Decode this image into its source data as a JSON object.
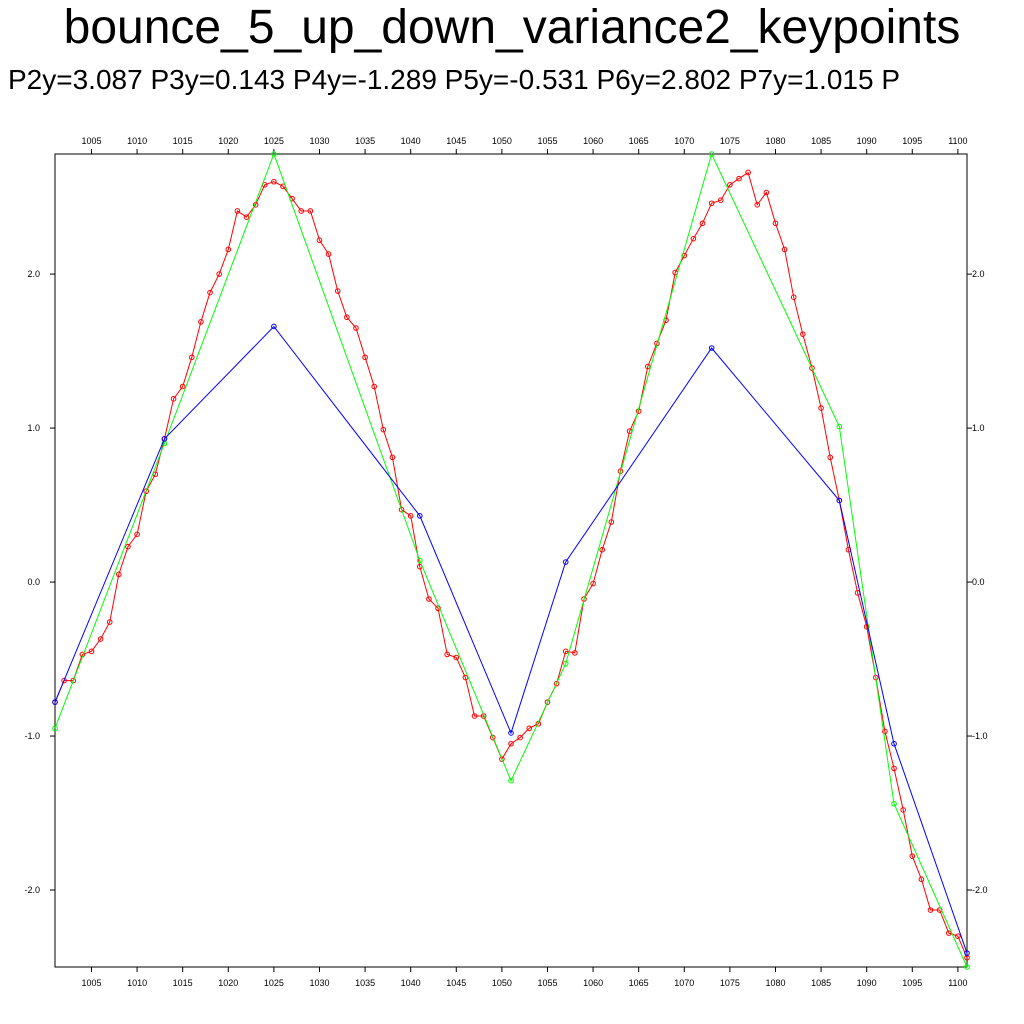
{
  "chart_data": {
    "type": "line",
    "title": "bounce_5_up_down_variance2_keypoints",
    "subtitle": "P2y=3.087 P3y=0.143 P4y=-1.289 P5y=-0.531 P6y=2.802 P7y=1.015 P",
    "xlim": [
      1001,
      1101
    ],
    "ylim": [
      -2.5,
      2.78
    ],
    "x_ticks": [
      1005,
      1010,
      1015,
      1020,
      1025,
      1030,
      1035,
      1040,
      1045,
      1050,
      1055,
      1060,
      1065,
      1070,
      1075,
      1080,
      1085,
      1090,
      1095,
      1100
    ],
    "x_tick_labels": [
      "1005",
      "1010",
      "1015",
      "1020",
      "1025",
      "1030",
      "1035",
      "1040",
      "1045",
      "1050",
      "1055",
      "1060",
      "1065",
      "1070",
      "1075",
      "1080",
      "1085",
      "1090",
      "1095",
      "1100"
    ],
    "y_ticks": [
      2.0,
      1.0,
      0.0,
      -1.0,
      -2.0
    ],
    "y_tick_labels": [
      "2.0",
      "1.0",
      "0.0",
      "-1.0",
      "-2.0"
    ],
    "grid": false,
    "series": [
      {
        "color": "#ff0000",
        "x": [
          1001,
          1002,
          1003,
          1004,
          1005,
          1006,
          1007,
          1008,
          1009,
          1010,
          1011,
          1012,
          1013,
          1014,
          1015,
          1016,
          1017,
          1018,
          1019,
          1020,
          1021,
          1022,
          1023,
          1024,
          1025,
          1026,
          1027,
          1028,
          1029,
          1030,
          1031,
          1032,
          1033,
          1034,
          1035,
          1036,
          1037,
          1038,
          1039,
          1040,
          1041,
          1042,
          1043,
          1044,
          1045,
          1046,
          1047,
          1048,
          1049,
          1050,
          1051,
          1052,
          1053,
          1054,
          1055,
          1056,
          1057,
          1058,
          1059,
          1060,
          1061,
          1062,
          1063,
          1064,
          1065,
          1066,
          1067,
          1068,
          1069,
          1070,
          1071,
          1072,
          1073,
          1074,
          1075,
          1076,
          1077,
          1078,
          1079,
          1080,
          1081,
          1082,
          1083,
          1084,
          1085,
          1086,
          1087,
          1088,
          1089,
          1090,
          1091,
          1092,
          1093,
          1094,
          1095,
          1096,
          1097,
          1098,
          1099,
          1100,
          1101
        ],
        "y": [
          -0.78,
          -0.64,
          -0.64,
          -0.47,
          -0.45,
          -0.37,
          -0.26,
          0.05,
          0.23,
          0.31,
          0.59,
          0.7,
          0.93,
          1.19,
          1.27,
          1.46,
          1.69,
          1.88,
          2.0,
          2.16,
          2.41,
          2.37,
          2.45,
          2.58,
          2.6,
          2.57,
          2.49,
          2.41,
          2.41,
          2.22,
          2.13,
          1.89,
          1.72,
          1.65,
          1.46,
          1.27,
          0.99,
          0.81,
          0.47,
          0.43,
          0.1,
          -0.11,
          -0.17,
          -0.47,
          -0.49,
          -0.62,
          -0.87,
          -0.87,
          -1.01,
          -1.15,
          -1.05,
          -1.01,
          -0.95,
          -0.92,
          -0.78,
          -0.66,
          -0.45,
          -0.46,
          -0.11,
          -0.01,
          0.21,
          0.39,
          0.72,
          0.98,
          1.11,
          1.4,
          1.55,
          1.7,
          2.01,
          2.12,
          2.23,
          2.33,
          2.46,
          2.48,
          2.58,
          2.62,
          2.66,
          2.45,
          2.53,
          2.33,
          2.16,
          1.85,
          1.61,
          1.39,
          1.13,
          0.81,
          0.53,
          0.21,
          -0.07,
          -0.29,
          -0.62,
          -0.97,
          -1.21,
          -1.48,
          -1.78,
          -1.93,
          -2.13,
          -2.13,
          -2.28,
          -2.3,
          -2.44
        ]
      },
      {
        "color": "#00ff00",
        "x": [
          1001,
          1013,
          1025,
          1041,
          1051,
          1057,
          1073,
          1087,
          1093,
          1101
        ],
        "y": [
          -0.95,
          0.9,
          2.78,
          0.14,
          -1.29,
          -0.53,
          2.78,
          1.01,
          -1.44,
          -2.5
        ]
      },
      {
        "color": "#0000ff",
        "x": [
          1001,
          1013,
          1025,
          1041,
          1051,
          1057,
          1073,
          1087,
          1093,
          1101
        ],
        "y": [
          -0.78,
          0.93,
          1.66,
          0.43,
          -0.98,
          0.13,
          1.52,
          0.53,
          -1.05,
          -2.41
        ]
      }
    ]
  }
}
